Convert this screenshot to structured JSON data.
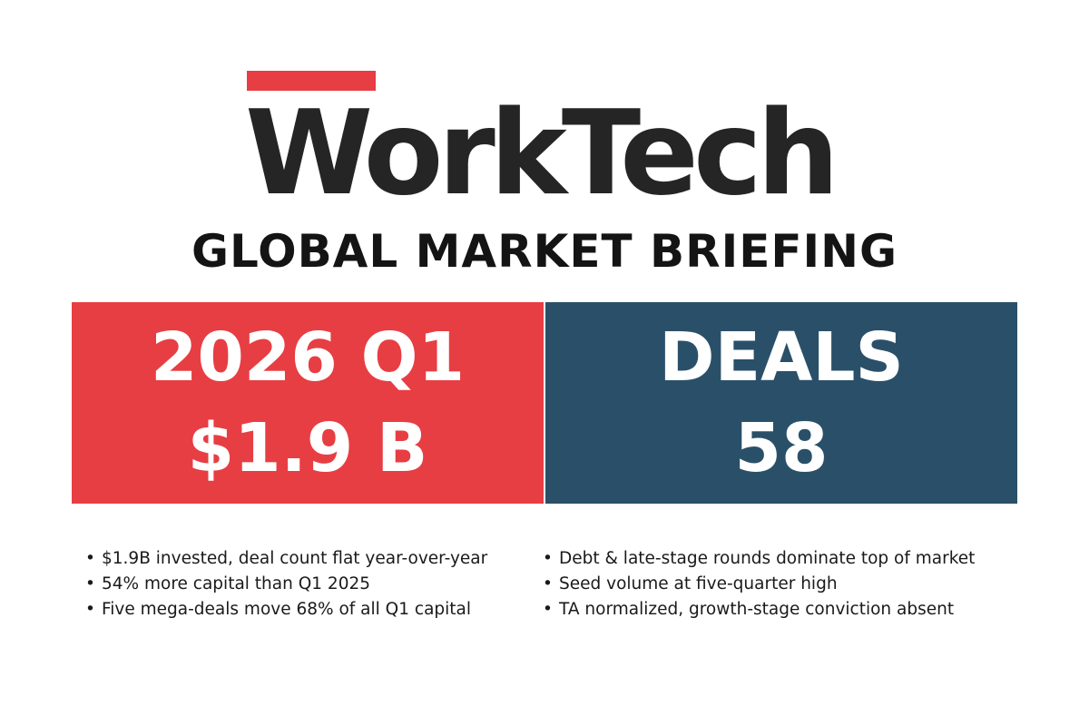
{
  "brand": {
    "name": "WorkTech",
    "accent_color": "#e63e42"
  },
  "subtitle": "GLOBAL MARKET BRIEFING",
  "panels": {
    "left": {
      "line1": "2026 Q1",
      "line2": "$1.9 B",
      "color": "#e73e43"
    },
    "right": {
      "line1": "DEALS",
      "line2": "58",
      "color": "#2a5069"
    }
  },
  "bullets_left": [
    "$1.9B invested, deal count flat year-over-year",
    "54% more capital than Q1 2025",
    "Five mega-deals move 68% of all Q1 capital"
  ],
  "bullets_right": [
    "Debt & late-stage rounds dominate top of  market",
    "Seed volume at five-quarter high",
    "TA normalized, growth-stage conviction absent"
  ]
}
